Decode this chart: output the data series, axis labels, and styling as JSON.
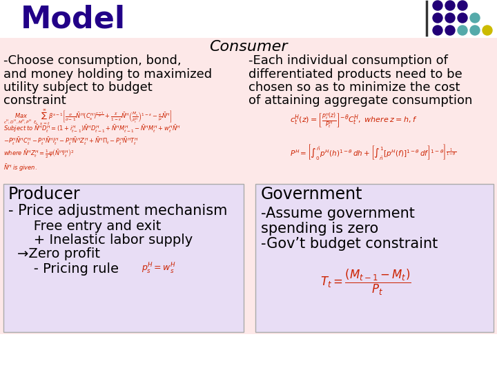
{
  "title": "Model",
  "title_color": "#220088",
  "title_fontsize": 32,
  "bg_top": "#ffffff",
  "bg_consumer": "#fde8e8",
  "bg_producer": "#e8ddf5",
  "bg_government": "#e8ddf5",
  "consumer_title": "Consumer",
  "consumer_left_lines": [
    "-Choose consumption, bond,",
    "and money holding to maximized",
    "utility subject to budget",
    "constraint"
  ],
  "consumer_right_lines": [
    "-Each individual consumption of",
    "differentiated products need to be",
    "chosen so as to minimize the cost",
    "of attaining aggregate consumption"
  ],
  "producer_lines": [
    "Producer",
    "- Price adjustment mechanism",
    "   Free entry and exit",
    "   + Inelastic labor supply",
    "→Zero profit",
    "   - Pricing rule"
  ],
  "government_lines": [
    "Government",
    "-Assume government",
    "spending is zero",
    "-Gov’t budget constraint"
  ],
  "dot_colors_row1": [
    "#220077",
    "#220077",
    "#220077"
  ],
  "dot_colors_row2": [
    "#220077",
    "#220077",
    "#220077",
    "#55aaaa"
  ],
  "dot_colors_row3": [
    "#220077",
    "#220077",
    "#55aaaa",
    "#55aaaa",
    "#ccbb00"
  ],
  "formula_color": "#cc2200",
  "text_color": "#000000",
  "divider_color": "#333333"
}
